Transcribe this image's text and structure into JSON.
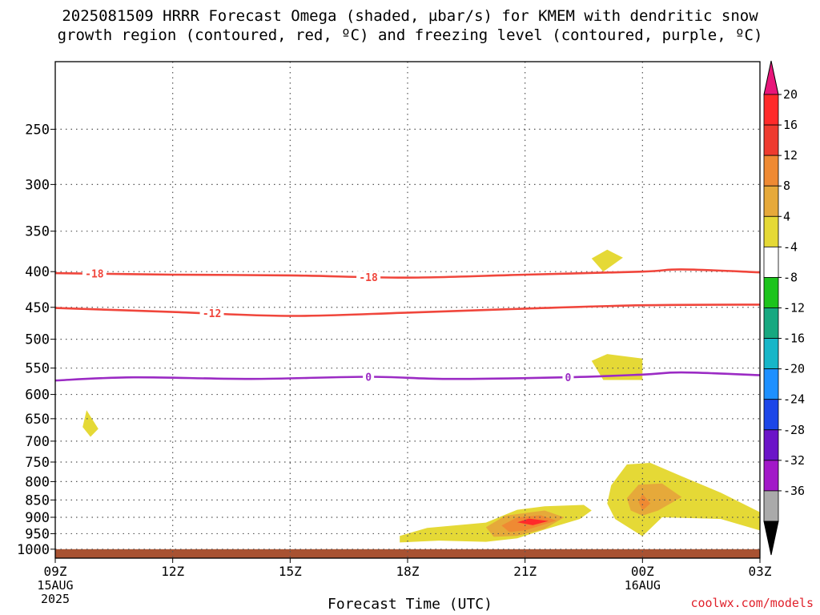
{
  "chart_data": {
    "type": "heatmap",
    "title_line1": "2025081509 HRRR Forecast Omega (shaded, µbar/s) for KMEM with dendritic snow",
    "title_line2": "growth region (contoured, red, ºC) and freezing level (contoured, purple, ºC)",
    "xlabel": "Forecast Time (UTC)",
    "ylabel": "",
    "x_ticks": [
      {
        "hour": 0,
        "label": "09Z",
        "sub1": "15AUG",
        "sub2": "2025"
      },
      {
        "hour": 3,
        "label": "12Z",
        "sub1": "",
        "sub2": ""
      },
      {
        "hour": 6,
        "label": "15Z",
        "sub1": "",
        "sub2": ""
      },
      {
        "hour": 9,
        "label": "18Z",
        "sub1": "",
        "sub2": ""
      },
      {
        "hour": 12,
        "label": "21Z",
        "sub1": "",
        "sub2": ""
      },
      {
        "hour": 15,
        "label": "00Z",
        "sub1": "16AUG",
        "sub2": ""
      },
      {
        "hour": 18,
        "label": "03Z",
        "sub1": "",
        "sub2": ""
      }
    ],
    "xlim": [
      0,
      18
    ],
    "y_ticks": [
      250,
      300,
      350,
      400,
      450,
      500,
      550,
      600,
      650,
      700,
      750,
      800,
      850,
      900,
      950,
      1000
    ],
    "ylim": [
      200,
      1030
    ],
    "y_scale": "log-pressure",
    "grid": true,
    "colorbar": {
      "labels": [
        "20",
        "16",
        "12",
        "8",
        "4",
        "-4",
        "-8",
        "-12",
        "-16",
        "-20",
        "-24",
        "-28",
        "-32",
        "-36"
      ],
      "colors": [
        "#ff2a2a",
        "#ee3b2f",
        "#ef8a33",
        "#e6a93a",
        "#e5d936",
        "#ffffff",
        "#1cc41c",
        "#17a880",
        "#17b6c8",
        "#1e90ff",
        "#1c46e8",
        "#6b14c8",
        "#a218c8",
        "#aaaaaa"
      ],
      "top_color": "#e8167a",
      "bottom_color": "#000000"
    },
    "contours": [
      {
        "label": "-18",
        "color": "#f0463c",
        "label_at_hours": [
          1.0,
          8.0
        ],
        "points": [
          [
            0,
            402
          ],
          [
            3,
            404
          ],
          [
            6,
            405
          ],
          [
            9,
            408
          ],
          [
            12,
            404
          ],
          [
            15,
            400
          ],
          [
            16,
            397
          ],
          [
            18,
            401
          ]
        ]
      },
      {
        "label": "-12",
        "color": "#f0463c",
        "label_at_hours": [
          4.0
        ],
        "points": [
          [
            0,
            451
          ],
          [
            3,
            457
          ],
          [
            6,
            463
          ],
          [
            9,
            458
          ],
          [
            12,
            452
          ],
          [
            15,
            447
          ],
          [
            18,
            446
          ]
        ]
      },
      {
        "label": "0",
        "color": "#9b2bc4",
        "label_at_hours": [
          8.0,
          13.1
        ],
        "points": [
          [
            0,
            573
          ],
          [
            2,
            567
          ],
          [
            5,
            570
          ],
          [
            8,
            566
          ],
          [
            10,
            570
          ],
          [
            13,
            567
          ],
          [
            15,
            562
          ],
          [
            16,
            558
          ],
          [
            18,
            563
          ]
        ]
      }
    ],
    "shaded_regions": [
      {
        "level": 4,
        "color": "#e5d936",
        "points": [
          [
            0.8,
            632
          ],
          [
            1.1,
            672
          ],
          [
            0.9,
            690
          ],
          [
            0.7,
            668
          ]
        ]
      },
      {
        "level": 4,
        "color": "#e5d936",
        "points": [
          [
            13.7,
            383
          ],
          [
            14.1,
            372
          ],
          [
            14.5,
            382
          ],
          [
            14.0,
            400
          ]
        ]
      },
      {
        "level": 4,
        "color": "#e5d936",
        "points": [
          [
            13.7,
            537
          ],
          [
            14.1,
            525
          ],
          [
            15.0,
            533
          ],
          [
            15.0,
            572
          ],
          [
            14.0,
            572
          ]
        ]
      },
      {
        "level": 4,
        "color": "#e5d936",
        "points": [
          [
            8.8,
            957
          ],
          [
            9.5,
            932
          ],
          [
            11.0,
            916
          ],
          [
            11.8,
            878
          ],
          [
            12.5,
            868
          ],
          [
            13.5,
            864
          ],
          [
            13.7,
            880
          ],
          [
            13.4,
            905
          ],
          [
            12.5,
            937
          ],
          [
            11.8,
            965
          ],
          [
            11.0,
            976
          ],
          [
            9.8,
            972
          ],
          [
            8.8,
            978
          ]
        ]
      },
      {
        "level": 8,
        "color": "#e6a93a",
        "points": [
          [
            11.0,
            930
          ],
          [
            11.5,
            895
          ],
          [
            12.5,
            880
          ],
          [
            13.0,
            900
          ],
          [
            12.5,
            935
          ],
          [
            11.8,
            957
          ],
          [
            11.2,
            960
          ]
        ]
      },
      {
        "level": 12,
        "color": "#ef8a33",
        "points": [
          [
            11.4,
            925
          ],
          [
            11.8,
            900
          ],
          [
            12.4,
            894
          ],
          [
            12.8,
            910
          ],
          [
            12.0,
            940
          ],
          [
            11.6,
            945
          ]
        ]
      },
      {
        "level": 16,
        "color": "#ff2a2a",
        "points": [
          [
            11.8,
            915
          ],
          [
            12.1,
            904
          ],
          [
            12.6,
            911
          ],
          [
            12.2,
            924
          ]
        ]
      },
      {
        "level": 4,
        "color": "#e5d936",
        "points": [
          [
            14.2,
            810
          ],
          [
            14.6,
            756
          ],
          [
            15.2,
            752
          ],
          [
            16.0,
            786
          ],
          [
            17.0,
            830
          ],
          [
            18.0,
            885
          ],
          [
            18.0,
            940
          ],
          [
            17.0,
            905
          ],
          [
            15.5,
            900
          ],
          [
            15.0,
            958
          ],
          [
            14.3,
            905
          ],
          [
            14.1,
            860
          ]
        ]
      },
      {
        "level": 8,
        "color": "#e6a93a",
        "points": [
          [
            14.6,
            845
          ],
          [
            14.9,
            808
          ],
          [
            15.5,
            805
          ],
          [
            16.0,
            842
          ],
          [
            15.4,
            880
          ],
          [
            15.0,
            895
          ],
          [
            14.7,
            880
          ]
        ]
      },
      {
        "level": 12,
        "color": "#ef8a33",
        "points": [
          [
            14.9,
            855
          ],
          [
            15.0,
            833
          ],
          [
            15.2,
            860
          ],
          [
            15.0,
            880
          ]
        ]
      }
    ],
    "ground": {
      "color": "#a85232",
      "from_pressure": 1000
    }
  },
  "credit": "coolwx.com/models"
}
